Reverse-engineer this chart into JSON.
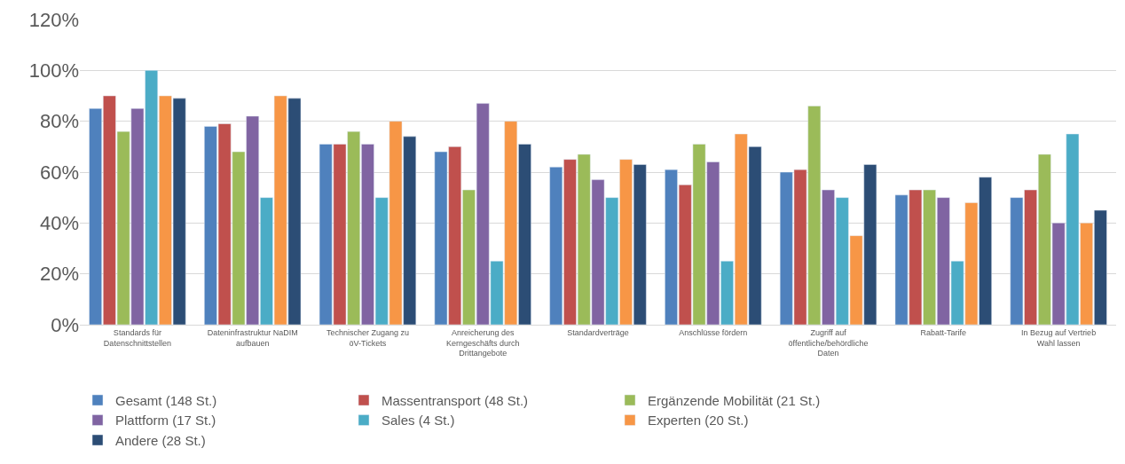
{
  "chart_data": {
    "type": "bar",
    "categories": [
      "Standards für Datenschnittstellen",
      "Dateninfrastruktur NaDIM aufbauen",
      "Technischer Zugang zu öV-Tickets",
      "Anreicherung des Kerngeschäfts durch Drittangebote",
      "Standardverträge",
      "Anschlüsse fördern",
      "Zugriff auf öffentliche/behördliche Daten",
      "Rabatt-Tarife",
      "In Bezug auf Vertrieb Wahl lassen"
    ],
    "series": [
      {
        "name": "Gesamt (148 St.)",
        "color": "#4f81bd",
        "values": [
          85,
          78,
          71,
          68,
          62,
          61,
          60,
          51,
          50
        ]
      },
      {
        "name": "Massentransport (48 St.)",
        "color": "#c0504d",
        "values": [
          90,
          79,
          71,
          70,
          65,
          55,
          61,
          53,
          53
        ]
      },
      {
        "name": "Ergänzende Mobilität (21 St.)",
        "color": "#9bbb59",
        "values": [
          76,
          68,
          76,
          53,
          67,
          71,
          86,
          53,
          67
        ]
      },
      {
        "name": "Plattform (17 St.)",
        "color": "#8064a2",
        "values": [
          85,
          82,
          71,
          87,
          57,
          64,
          53,
          50,
          40
        ]
      },
      {
        "name": "Sales (4 St.)",
        "color": "#4bacc6",
        "values": [
          100,
          50,
          50,
          25,
          50,
          25,
          50,
          25,
          75
        ]
      },
      {
        "name": "Experten (20 St.)",
        "color": "#f79646",
        "values": [
          90,
          90,
          80,
          80,
          65,
          75,
          35,
          48,
          40
        ]
      },
      {
        "name": "Andere (28 St.)",
        "color": "#2c4d75",
        "values": [
          89,
          89,
          74,
          71,
          63,
          70,
          63,
          58,
          45
        ]
      }
    ],
    "ylim": [
      0,
      120
    ],
    "yticks": [
      {
        "value": 0,
        "label": "0%"
      },
      {
        "value": 20,
        "label": "20%"
      },
      {
        "value": 40,
        "label": "40%"
      },
      {
        "value": 60,
        "label": "60%"
      },
      {
        "value": 80,
        "label": "80%"
      },
      {
        "value": 100,
        "label": "100%"
      },
      {
        "value": 120,
        "label": "120%"
      }
    ],
    "grid": "y",
    "legend": "bottom"
  }
}
